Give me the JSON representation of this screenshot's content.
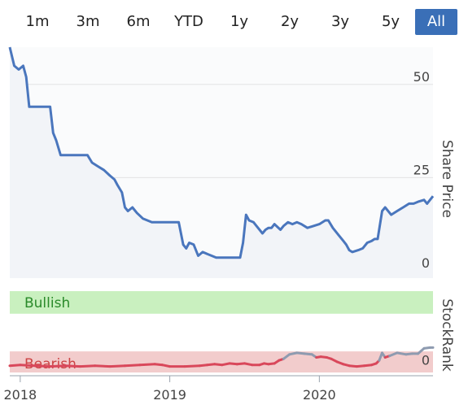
{
  "range_buttons": [
    {
      "label": "1m",
      "active": false
    },
    {
      "label": "3m",
      "active": false
    },
    {
      "label": "6m",
      "active": false
    },
    {
      "label": "YTD",
      "active": false
    },
    {
      "label": "1y",
      "active": false
    },
    {
      "label": "2y",
      "active": false
    },
    {
      "label": "3y",
      "active": false
    },
    {
      "label": "5y",
      "active": false
    },
    {
      "label": "All",
      "active": true
    }
  ],
  "colors": {
    "accent": "#3a6fb7",
    "price_line": "#4a76bd",
    "price_fill": "#f2f4f8",
    "bullish_zone": "#c9f0bf",
    "bearish_zone": "#f2cccc",
    "bullish_text": "#2a8a2a",
    "bearish_text": "#cc4444",
    "rank_red": "#d9485b",
    "rank_grey": "#8e9bb0",
    "grid": "#e3e3e3"
  },
  "chart_data": [
    {
      "type": "line",
      "name": "share-price-chart",
      "ylabel": "Share Price",
      "yticks": [
        0,
        25,
        50
      ],
      "ylim": [
        -2,
        60
      ],
      "x_range": [
        2017.93,
        2020.76
      ],
      "fill": true,
      "series": [
        {
          "x": [
            2017.93,
            2017.96,
            2017.99,
            2018.02,
            2018.04,
            2018.06,
            2018.08,
            2018.1,
            2018.2,
            2018.22,
            2018.24,
            2018.27,
            2018.3,
            2018.45,
            2018.48,
            2018.52,
            2018.56,
            2018.6,
            2018.63,
            2018.65,
            2018.68,
            2018.7,
            2018.72,
            2018.75,
            2018.78,
            2018.82,
            2018.88,
            2018.9,
            2018.92,
            2019.06,
            2019.09,
            2019.11,
            2019.13,
            2019.16,
            2019.19,
            2019.22,
            2019.25,
            2019.28,
            2019.31,
            2019.36,
            2019.47,
            2019.49,
            2019.51,
            2019.53,
            2019.56,
            2019.58,
            2019.62,
            2019.64,
            2019.66,
            2019.68,
            2019.7,
            2019.74,
            2019.76,
            2019.79,
            2019.82,
            2019.85,
            2019.88,
            2019.92,
            2019.96,
            2020.0,
            2020.04,
            2020.06,
            2020.09,
            2020.13,
            2020.16,
            2020.18,
            2020.2,
            2020.22,
            2020.26,
            2020.29,
            2020.32,
            2020.35,
            2020.37,
            2020.39,
            2020.42,
            2020.44,
            2020.48,
            2020.52,
            2020.56,
            2020.6,
            2020.63,
            2020.66,
            2020.7,
            2020.72,
            2020.76
          ],
          "y": [
            60,
            55,
            54,
            55,
            52,
            44,
            44,
            44,
            44,
            37,
            35,
            31,
            31,
            31,
            29,
            28,
            27,
            25.5,
            24.5,
            23,
            21,
            17,
            16,
            17,
            15.5,
            14,
            13,
            13,
            13,
            13,
            7,
            6,
            7.5,
            7,
            4,
            5,
            4.5,
            4,
            3.5,
            3.5,
            3.5,
            7.5,
            15,
            13.5,
            13,
            12,
            10,
            11,
            11.5,
            11.5,
            12.5,
            11,
            12,
            13,
            12.5,
            13,
            12.5,
            11.5,
            12,
            12.5,
            13.5,
            13.5,
            11.5,
            9.5,
            8,
            7,
            5.5,
            5,
            5.5,
            6,
            7.5,
            8,
            8.5,
            8.5,
            16,
            17,
            15,
            16,
            17,
            18,
            18,
            18.5,
            19,
            18,
            20
          ]
        }
      ]
    },
    {
      "type": "line",
      "name": "stockrank-chart",
      "ylabel": "StockRank",
      "yticks": [
        0
      ],
      "ylim": [
        -8,
        100
      ],
      "x_range": [
        2017.93,
        2020.76
      ],
      "zones": [
        {
          "label": "Bullish",
          "from": 70,
          "to": 100
        },
        {
          "label": "Bearish",
          "from": -8,
          "to": 20
        }
      ],
      "xticks": [
        "2018",
        "2019",
        "2020"
      ],
      "series": [
        {
          "name": "rank",
          "x": [
            2017.93,
            2018.0,
            2018.1,
            2018.2,
            2018.3,
            2018.4,
            2018.5,
            2018.6,
            2018.7,
            2018.8,
            2018.9,
            2018.95,
            2019.0,
            2019.1,
            2019.2,
            2019.25,
            2019.3,
            2019.35,
            2019.4,
            2019.45,
            2019.5,
            2019.55,
            2019.6,
            2019.63,
            2019.66,
            2019.7,
            2019.73,
            2019.76,
            2019.8,
            2019.85,
            2019.9,
            2019.95,
            2019.98,
            2020.01,
            2020.05,
            2020.08,
            2020.12,
            2020.16,
            2020.2,
            2020.25,
            2020.3,
            2020.35,
            2020.38,
            2020.4,
            2020.42,
            2020.44,
            2020.47,
            2020.52,
            2020.58,
            2020.62,
            2020.66,
            2020.7,
            2020.74,
            2020.76
          ],
          "y": [
            1,
            2,
            1,
            0,
            1,
            0,
            1,
            0,
            1,
            2,
            3,
            2,
            0,
            0,
            1,
            2,
            3,
            2,
            4,
            3,
            4,
            2,
            2,
            4,
            3,
            4,
            8,
            10,
            16,
            18,
            17,
            16,
            12,
            13,
            12,
            10,
            6,
            3,
            1,
            0,
            1,
            2,
            4,
            8,
            18,
            12,
            14,
            18,
            16,
            17,
            17,
            24,
            25,
            25
          ]
        }
      ]
    }
  ]
}
